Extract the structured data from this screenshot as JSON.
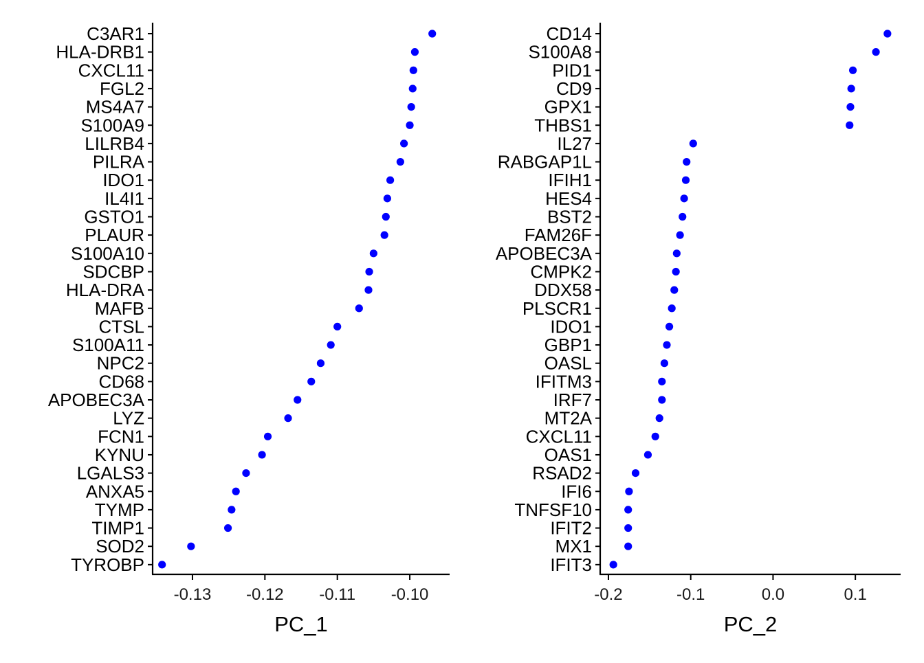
{
  "colors": {
    "point": "#0000FF",
    "axis": "#000000"
  },
  "chart_data": [
    {
      "type": "scatter",
      "xlabel": "PC_1",
      "ylabel": "",
      "xlim": [
        -0.1355,
        -0.0945
      ],
      "xticks": [
        -0.13,
        -0.12,
        -0.11,
        -0.1
      ],
      "xtick_labels": [
        "-0.13",
        "-0.12",
        "-0.11",
        "-0.10"
      ],
      "grid": false,
      "genes": [
        "C3AR1",
        "HLA-DRB1",
        "CXCL11",
        "FGL2",
        "MS4A7",
        "S100A9",
        "LILRB4",
        "PILRA",
        "IDO1",
        "IL4I1",
        "GSTO1",
        "PLAUR",
        "S100A10",
        "SDCBP",
        "HLA-DRA",
        "MAFB",
        "CTSL",
        "S100A11",
        "NPC2",
        "CD68",
        "APOBEC3A",
        "LYZ",
        "FCN1",
        "KYNU",
        "LGALS3",
        "ANXA5",
        "TYMP",
        "TIMP1",
        "SOD2",
        "TYROBP"
      ],
      "values": [
        -0.0969,
        -0.0993,
        -0.0995,
        -0.0996,
        -0.0998,
        -0.1,
        -0.1008,
        -0.1013,
        -0.1027,
        -0.1031,
        -0.1033,
        -0.1035,
        -0.105,
        -0.1056,
        -0.1057,
        -0.107,
        -0.11,
        -0.1109,
        -0.1123,
        -0.1136,
        -0.1155,
        -0.1168,
        -0.1196,
        -0.1204,
        -0.1226,
        -0.124,
        -0.1246,
        -0.1251,
        -0.1302,
        -0.1342
      ]
    },
    {
      "type": "scatter",
      "xlabel": "PC_2",
      "ylabel": "",
      "xlim": [
        -0.21,
        0.155
      ],
      "xticks": [
        -0.2,
        -0.1,
        0.0,
        0.1
      ],
      "xtick_labels": [
        "-0.2",
        "-0.1",
        "0.0",
        "0.1"
      ],
      "grid": false,
      "genes": [
        "CD14",
        "S100A8",
        "PID1",
        "CD9",
        "GPX1",
        "THBS1",
        "IL27",
        "RABGAP1L",
        "IFIH1",
        "HES4",
        "BST2",
        "FAM26F",
        "APOBEC3A",
        "CMPK2",
        "DDX58",
        "PLSCR1",
        "IDO1",
        "GBP1",
        "OASL",
        "IFITM3",
        "IRF7",
        "MT2A",
        "CXCL11",
        "OAS1",
        "RSAD2",
        "IFI6",
        "TNFSF10",
        "IFIT2",
        "MX1",
        "IFIT3"
      ],
      "values": [
        0.139,
        0.125,
        0.097,
        0.095,
        0.094,
        0.093,
        -0.097,
        -0.105,
        -0.106,
        -0.108,
        -0.11,
        -0.113,
        -0.117,
        -0.118,
        -0.12,
        -0.123,
        -0.126,
        -0.129,
        -0.132,
        -0.135,
        -0.135,
        -0.138,
        -0.143,
        -0.152,
        -0.167,
        -0.175,
        -0.176,
        -0.176,
        -0.176,
        -0.194
      ]
    }
  ]
}
